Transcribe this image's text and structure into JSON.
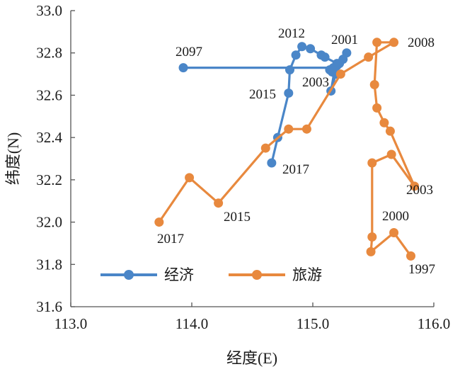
{
  "chart_data": {
    "type": "scatter",
    "xlabel": "经度(E)",
    "ylabel": "纬度(N)",
    "xlim": [
      113.0,
      116.0
    ],
    "ylim": [
      31.6,
      33.0
    ],
    "x_ticks": [
      "113.0",
      "114.0",
      "115.0",
      "116.0"
    ],
    "y_ticks": [
      "31.6",
      "31.8",
      "32.0",
      "32.2",
      "32.4",
      "32.6",
      "32.8",
      "33.0"
    ],
    "grid": false,
    "legend_position": "bottom-left",
    "series": [
      {
        "name": "经济",
        "color": "#4a86c8",
        "points": [
          {
            "x": 115.28,
            "y": 32.8
          },
          {
            "x": 115.25,
            "y": 32.77
          },
          {
            "x": 115.22,
            "y": 32.75
          },
          {
            "x": 115.2,
            "y": 32.74
          },
          {
            "x": 115.17,
            "y": 32.73
          },
          {
            "x": 115.14,
            "y": 32.72
          },
          {
            "x": 115.16,
            "y": 32.71
          },
          {
            "x": 115.19,
            "y": 32.7
          },
          {
            "x": 115.15,
            "y": 32.62
          },
          {
            "x": 115.18,
            "y": 32.72
          },
          {
            "x": 115.2,
            "y": 32.75
          },
          {
            "x": 115.1,
            "y": 32.78
          },
          {
            "x": 115.07,
            "y": 32.79
          },
          {
            "x": 114.98,
            "y": 32.82
          },
          {
            "x": 114.91,
            "y": 32.83
          },
          {
            "x": 114.86,
            "y": 32.79
          },
          {
            "x": 114.81,
            "y": 32.72
          },
          {
            "x": 114.8,
            "y": 32.61
          },
          {
            "x": 114.71,
            "y": 32.4
          },
          {
            "x": 114.66,
            "y": 32.28
          }
        ],
        "extra_segment": [
          {
            "x": 113.93,
            "y": 32.73
          },
          {
            "x": 115.14,
            "y": 32.73
          }
        ],
        "extra_point": {
          "x": 113.93,
          "y": 32.73
        }
      },
      {
        "name": "旅游",
        "color": "#e8893e",
        "points": [
          {
            "x": 115.81,
            "y": 31.84
          },
          {
            "x": 115.67,
            "y": 31.95
          },
          {
            "x": 115.48,
            "y": 31.86
          },
          {
            "x": 115.49,
            "y": 31.93
          },
          {
            "x": 115.49,
            "y": 32.28
          },
          {
            "x": 115.65,
            "y": 32.32
          },
          {
            "x": 115.84,
            "y": 32.17
          },
          {
            "x": 115.64,
            "y": 32.43
          },
          {
            "x": 115.59,
            "y": 32.47
          },
          {
            "x": 115.53,
            "y": 32.54
          },
          {
            "x": 115.51,
            "y": 32.65
          },
          {
            "x": 115.53,
            "y": 32.85
          },
          {
            "x": 115.67,
            "y": 32.85
          },
          {
            "x": 115.46,
            "y": 32.78
          },
          {
            "x": 115.23,
            "y": 32.7
          },
          {
            "x": 114.95,
            "y": 32.44
          },
          {
            "x": 114.8,
            "y": 32.44
          },
          {
            "x": 114.61,
            "y": 32.35
          },
          {
            "x": 114.22,
            "y": 32.09
          },
          {
            "x": 113.98,
            "y": 32.21
          },
          {
            "x": 113.73,
            "y": 32.0
          }
        ]
      }
    ],
    "annotations": [
      {
        "text": "2097",
        "series": "经济"
      },
      {
        "text": "2012",
        "series": "经济"
      },
      {
        "text": "2001",
        "series": "经济"
      },
      {
        "text": "2003",
        "series": "经济"
      },
      {
        "text": "2015",
        "series": "经济"
      },
      {
        "text": "2017",
        "series": "经济"
      },
      {
        "text": "2008",
        "series": "旅游"
      },
      {
        "text": "2003",
        "series": "旅游"
      },
      {
        "text": "2000",
        "series": "旅游"
      },
      {
        "text": "1997",
        "series": "旅游"
      },
      {
        "text": "2015",
        "series": "旅游"
      },
      {
        "text": "2017",
        "series": "旅游"
      }
    ]
  }
}
